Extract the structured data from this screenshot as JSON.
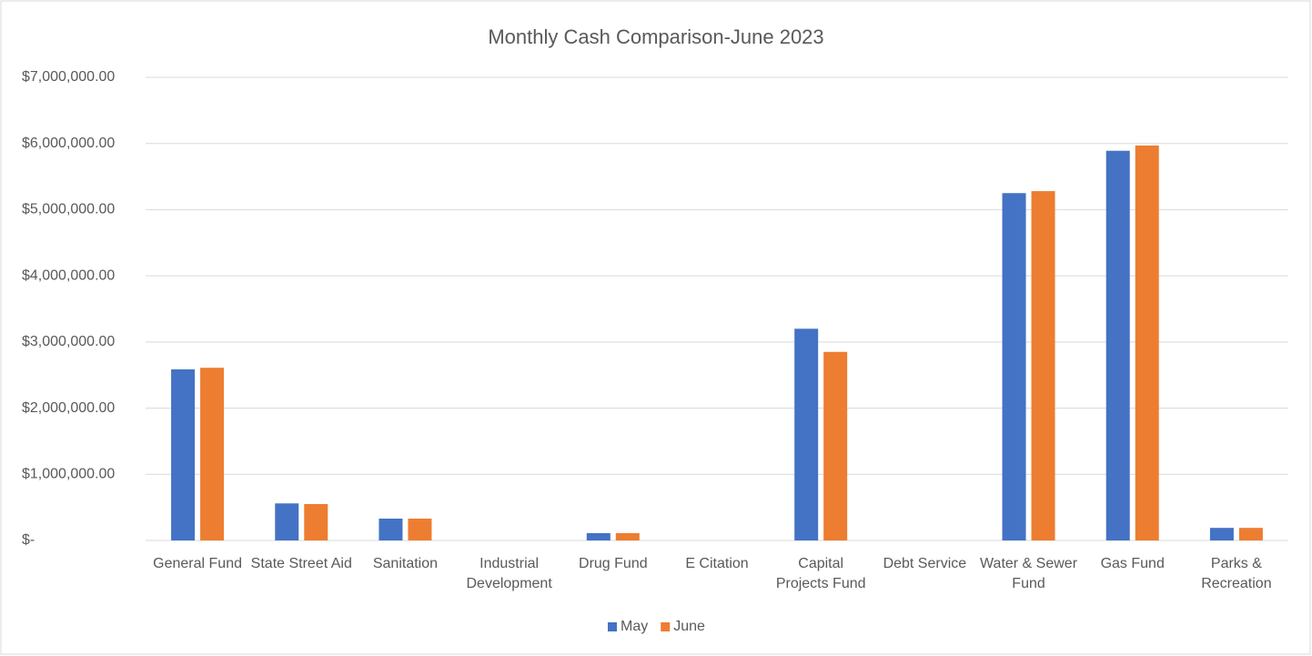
{
  "chart_data": {
    "type": "bar",
    "title": "Monthly Cash Comparison-June 2023",
    "categories": [
      "General Fund",
      "State Street Aid",
      "Sanitation",
      "Industrial Development",
      "Drug Fund",
      "E Citation",
      "Capital Projects Fund",
      "Debt Service",
      "Water & Sewer Fund",
      "Gas Fund",
      "Parks & Recreation"
    ],
    "series": [
      {
        "name": "May",
        "color": "#4472c4",
        "values": [
          2586000,
          560000,
          330000,
          0,
          110000,
          0,
          3200000,
          0,
          5250000,
          5890000,
          190000
        ]
      },
      {
        "name": "June",
        "color": "#ed7d31",
        "values": [
          2610000,
          550000,
          330000,
          0,
          110000,
          0,
          2850000,
          0,
          5280000,
          5970000,
          190000
        ]
      }
    ],
    "ylim": [
      0,
      7000000
    ],
    "yticks": [
      {
        "value": 0,
        "label": "$-"
      },
      {
        "value": 1000000,
        "label": "$1,000,000.00"
      },
      {
        "value": 2000000,
        "label": "$2,000,000.00"
      },
      {
        "value": 3000000,
        "label": "$3,000,000.00"
      },
      {
        "value": 4000000,
        "label": "$4,000,000.00"
      },
      {
        "value": 5000000,
        "label": "$5,000,000.00"
      },
      {
        "value": 6000000,
        "label": "$6,000,000.00"
      },
      {
        "value": 7000000,
        "label": "$7,000,000.00"
      }
    ],
    "grid": true,
    "legend": "bottom"
  }
}
